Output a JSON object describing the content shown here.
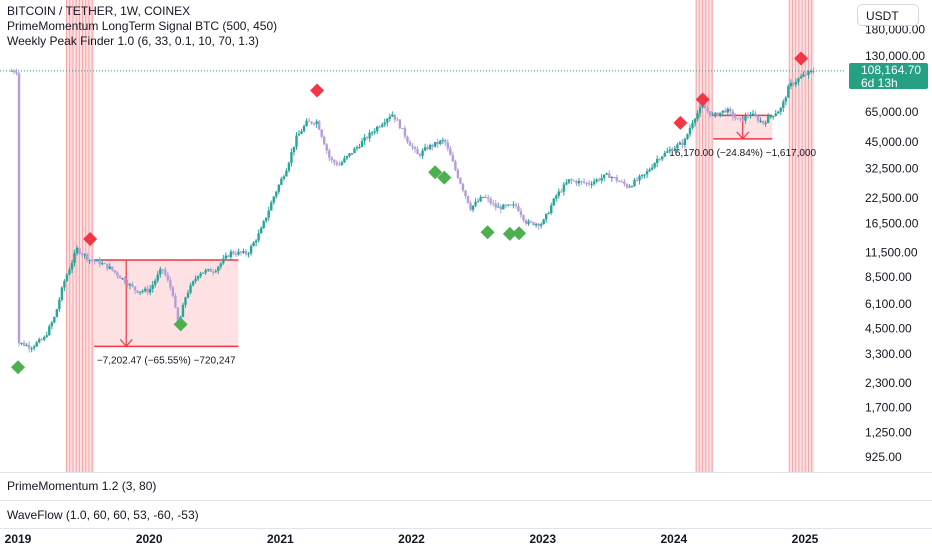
{
  "header": {
    "symbol_line": "BITCOIN / TETHER, 1W, COINEX",
    "indicator1": "PrimeMomentum LongTerm Signal BTC (500, 450)",
    "indicator2": "Weekly Peak Finder 1.0 (6, 33, 0.1, 10, 70, 1.3)",
    "currency_button": "USDT"
  },
  "price_tag": {
    "price": "108,164.70",
    "countdown": "6d 13h"
  },
  "panes": {
    "pane1_label": "PrimeMomentum 1.2 (3, 80)",
    "pane2_label": "WaveFlow (1.0, 60, 60, 53, -60, -53)"
  },
  "colors": {
    "up": "#26a69a",
    "down": "#b39ddb",
    "sell_marker": "#f23645",
    "buy_marker": "#4caf50",
    "zone": "#f7a1a6",
    "measure": "#f23645"
  },
  "chart_data": {
    "type": "candlestick",
    "scale": "log",
    "y_ticks": [
      180000,
      130000,
      65000,
      45000,
      32500,
      22500,
      16500,
      11500,
      8500,
      6100,
      4500,
      3300,
      2300,
      1700,
      1250,
      925
    ],
    "y_tick_labels": [
      "180,000.00",
      "130,000.00",
      "65,000.00",
      "45,000.00",
      "32,500.00",
      "22,500.00",
      "16,500.00",
      "11,500.00",
      "8,500.00",
      "6,100.00",
      "4,500.00",
      "3,300.00",
      "2,300.00",
      "1,700.00",
      "1,250.00",
      "925.00"
    ],
    "x_ticks": [
      2019,
      2020,
      2021,
      2022,
      2023,
      2024,
      2025
    ],
    "x_tick_labels": [
      "2019",
      "2020",
      "2021",
      "2022",
      "2023",
      "2024",
      "2025"
    ],
    "last_price": 108164.7,
    "price_series": [
      [
        2019.0,
        3800
      ],
      [
        2019.1,
        3600
      ],
      [
        2019.2,
        4000
      ],
      [
        2019.28,
        5200
      ],
      [
        2019.35,
        8000
      ],
      [
        2019.45,
        12000
      ],
      [
        2019.55,
        10500
      ],
      [
        2019.62,
        10200
      ],
      [
        2019.7,
        9500
      ],
      [
        2019.8,
        8300
      ],
      [
        2019.9,
        7200
      ],
      [
        2020.0,
        7200
      ],
      [
        2020.1,
        9500
      ],
      [
        2020.18,
        7000
      ],
      [
        2020.22,
        4600
      ],
      [
        2020.28,
        6800
      ],
      [
        2020.38,
        9000
      ],
      [
        2020.5,
        9300
      ],
      [
        2020.62,
        11500
      ],
      [
        2020.75,
        11400
      ],
      [
        2020.85,
        15000
      ],
      [
        2020.95,
        23000
      ],
      [
        2021.05,
        33000
      ],
      [
        2021.12,
        47000
      ],
      [
        2021.2,
        57000
      ],
      [
        2021.28,
        58000
      ],
      [
        2021.38,
        36000
      ],
      [
        2021.45,
        34000
      ],
      [
        2021.55,
        40000
      ],
      [
        2021.65,
        47000
      ],
      [
        2021.75,
        55000
      ],
      [
        2021.85,
        64000
      ],
      [
        2021.9,
        57000
      ],
      [
        2021.97,
        46000
      ],
      [
        2022.05,
        38000
      ],
      [
        2022.12,
        42000
      ],
      [
        2022.25,
        46000
      ],
      [
        2022.35,
        30000
      ],
      [
        2022.45,
        20000
      ],
      [
        2022.55,
        23000
      ],
      [
        2022.65,
        20000
      ],
      [
        2022.8,
        20500
      ],
      [
        2022.88,
        16500
      ],
      [
        2023.0,
        16500
      ],
      [
        2023.1,
        23000
      ],
      [
        2023.2,
        28000
      ],
      [
        2023.35,
        27000
      ],
      [
        2023.5,
        30000
      ],
      [
        2023.65,
        26000
      ],
      [
        2023.78,
        30000
      ],
      [
        2023.88,
        37000
      ],
      [
        2024.0,
        42000
      ],
      [
        2024.08,
        45000
      ],
      [
        2024.15,
        60000
      ],
      [
        2024.22,
        70000
      ],
      [
        2024.3,
        62000
      ],
      [
        2024.4,
        67000
      ],
      [
        2024.5,
        58000
      ],
      [
        2024.58,
        64000
      ],
      [
        2024.68,
        57000
      ],
      [
        2024.75,
        63000
      ],
      [
        2024.82,
        68000
      ],
      [
        2024.88,
        90000
      ],
      [
        2024.95,
        98000
      ],
      [
        2025.02,
        105000
      ],
      [
        2025.08,
        108164.7
      ]
    ],
    "sell_signals": [
      [
        2019.55,
        13600
      ],
      [
        2021.28,
        85000
      ],
      [
        2024.05,
        57000
      ],
      [
        2024.22,
        76000
      ],
      [
        2024.97,
        126000
      ]
    ],
    "buy_signals": [
      [
        2019.0,
        2800
      ],
      [
        2020.24,
        4750
      ],
      [
        2022.18,
        31000
      ],
      [
        2022.25,
        29000
      ],
      [
        2022.58,
        14800
      ],
      [
        2022.75,
        14500
      ],
      [
        2022.82,
        14600
      ]
    ],
    "signal_zones": [
      [
        2019.37,
        2019.58
      ],
      [
        2024.17,
        2024.3
      ],
      [
        2024.88,
        2025.07
      ]
    ],
    "measurements": [
      {
        "x1": 2019.58,
        "x2": 2020.68,
        "top": 10500,
        "bottom": 3620,
        "label": "−7,202.47 (−65.55%) −720,247"
      },
      {
        "x1": 2024.3,
        "x2": 2024.75,
        "top": 62500,
        "bottom": 46800,
        "label": "16,170.00 (−24.84%) −1,617,000"
      }
    ]
  }
}
